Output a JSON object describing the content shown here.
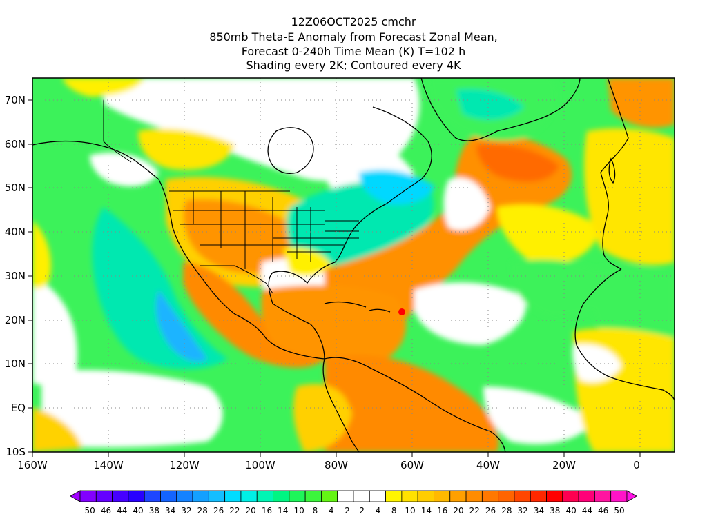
{
  "title": {
    "line1": "12Z06OCT2025 cmchr",
    "line2": "850mb Theta-E Anomaly from Forecast Zonal Mean,",
    "line3": "Forecast 0-240h Time Mean (K) T=102 h",
    "line4": "Shading every 2K; Contoured every 4K"
  },
  "map": {
    "lon_range": [
      -160,
      10
    ],
    "lat_range": [
      -10,
      75
    ],
    "lon_ticks": [
      "160W",
      "140W",
      "120W",
      "100W",
      "80W",
      "60W",
      "40W",
      "20W",
      "0"
    ],
    "lat_ticks": [
      "70N",
      "60N",
      "50N",
      "40N",
      "30N",
      "20N",
      "10N",
      "EQ",
      "10S"
    ],
    "colors": {
      "ocean_green": "#3cf25a",
      "teal": "#00e8b0",
      "cyan": "#00d8ff",
      "blue": "#1496ff",
      "white": "#ffffff",
      "yellow": "#fff000",
      "gold": "#ffcc00",
      "orange": "#ff9800",
      "dark_orange": "#ff6e00",
      "red_orange": "#ff4a00",
      "border": "#000000"
    }
  },
  "colorbar": {
    "labels": [
      "-50",
      "-46",
      "-44",
      "-40",
      "-38",
      "-34",
      "-32",
      "-28",
      "-26",
      "-22",
      "-20",
      "-16",
      "-14",
      "-10",
      "-8",
      "-4",
      "-2",
      "2",
      "4",
      "8",
      "10",
      "14",
      "16",
      "20",
      "22",
      "26",
      "28",
      "32",
      "34",
      "38",
      "40",
      "44",
      "46",
      "50"
    ],
    "colors": [
      "#a000ff",
      "#8200ff",
      "#6400ff",
      "#4600ff",
      "#2800ff",
      "#1e46ff",
      "#1464ff",
      "#1482ff",
      "#14a0ff",
      "#14beff",
      "#00dcff",
      "#00f0e6",
      "#00f5b4",
      "#00f582",
      "#1ef55a",
      "#3cf53c",
      "#64f514",
      "#ffffff",
      "#ffffff",
      "#ffffff",
      "#fff500",
      "#ffe100",
      "#ffcd00",
      "#ffb900",
      "#ffa000",
      "#ff8c00",
      "#ff7800",
      "#ff6400",
      "#ff4600",
      "#ff2800",
      "#ff0000",
      "#ff0050",
      "#ff0078",
      "#ff14a0",
      "#ff14c8",
      "#ff14e6"
    ]
  }
}
